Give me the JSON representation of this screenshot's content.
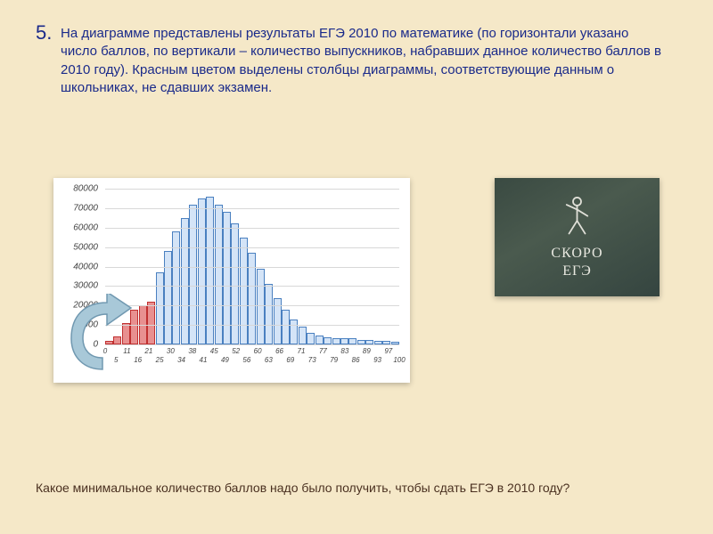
{
  "question_number": "5.",
  "question_text": "На диаграмме представлены результаты ЕГЭ 2010 по математике (по горизонтали указано число баллов, по вертикали – количество выпускников, набравших данное количество баллов в 2010 году). Красным цветом выделены столбцы диаграммы, соответствующие данным о школьниках, не сдавших экзамен.",
  "bottom_question": "Какое минимальное количество баллов надо было получить, чтобы сдать ЕГЭ в 2010 году?",
  "photo": {
    "line1": "СКОРО",
    "line2": "ЕГЭ"
  },
  "chart": {
    "type": "bar",
    "background_color": "#ffffff",
    "grid_color": "#d8d8d8",
    "ylim": [
      0,
      80000
    ],
    "ytick_step": 10000,
    "y_labels": [
      "0",
      "10000",
      "20000",
      "30000",
      "40000",
      "50000",
      "60000",
      "70000",
      "80000"
    ],
    "x_labels_top": [
      "0",
      "11",
      "21",
      "30",
      "38",
      "45",
      "52",
      "60",
      "66",
      "71",
      "77",
      "83",
      "89",
      "97"
    ],
    "x_labels_bottom": [
      "5",
      "16",
      "25",
      "34",
      "41",
      "49",
      "56",
      "63",
      "69",
      "73",
      "79",
      "86",
      "93",
      "100"
    ],
    "x_label_fontsize": 8,
    "y_label_fontsize": 10,
    "bar_border_blue": "#4a80c0",
    "bar_fill_blue": "#d4e4f7",
    "bar_border_red": "#c03030",
    "bar_fill_red": "#e89090",
    "arrow_fill": "#a8c8d8",
    "arrow_stroke": "#7098b0",
    "bars": [
      {
        "v": 2000,
        "c": "red"
      },
      {
        "v": 4000,
        "c": "red"
      },
      {
        "v": 11000,
        "c": "red"
      },
      {
        "v": 18000,
        "c": "red"
      },
      {
        "v": 20000,
        "c": "red"
      },
      {
        "v": 22000,
        "c": "red"
      },
      {
        "v": 37000,
        "c": "blue"
      },
      {
        "v": 48000,
        "c": "blue"
      },
      {
        "v": 58000,
        "c": "blue"
      },
      {
        "v": 65000,
        "c": "blue"
      },
      {
        "v": 72000,
        "c": "blue"
      },
      {
        "v": 75000,
        "c": "blue"
      },
      {
        "v": 76000,
        "c": "blue"
      },
      {
        "v": 72000,
        "c": "blue"
      },
      {
        "v": 68000,
        "c": "blue"
      },
      {
        "v": 62000,
        "c": "blue"
      },
      {
        "v": 55000,
        "c": "blue"
      },
      {
        "v": 47000,
        "c": "blue"
      },
      {
        "v": 39000,
        "c": "blue"
      },
      {
        "v": 31000,
        "c": "blue"
      },
      {
        "v": 24000,
        "c": "blue"
      },
      {
        "v": 18000,
        "c": "blue"
      },
      {
        "v": 13000,
        "c": "blue"
      },
      {
        "v": 9000,
        "c": "blue"
      },
      {
        "v": 6000,
        "c": "blue"
      },
      {
        "v": 4500,
        "c": "blue"
      },
      {
        "v": 3500,
        "c": "blue"
      },
      {
        "v": 3000,
        "c": "blue"
      },
      {
        "v": 3000,
        "c": "blue"
      },
      {
        "v": 3000,
        "c": "blue"
      },
      {
        "v": 2500,
        "c": "blue"
      },
      {
        "v": 2500,
        "c": "blue"
      },
      {
        "v": 2000,
        "c": "blue"
      },
      {
        "v": 2000,
        "c": "blue"
      },
      {
        "v": 1500,
        "c": "blue"
      }
    ]
  }
}
